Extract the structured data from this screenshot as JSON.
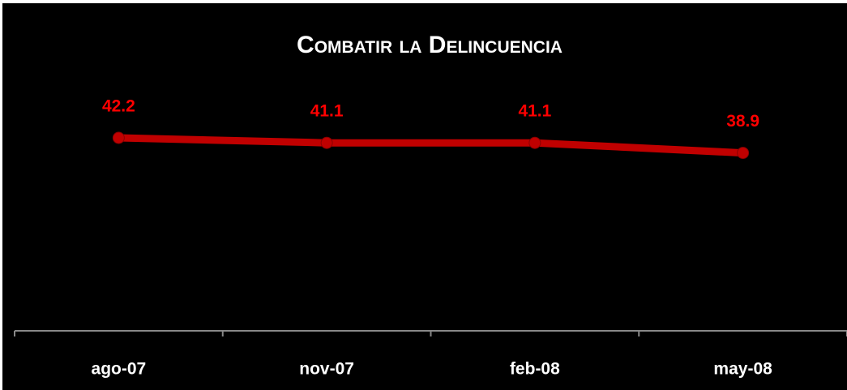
{
  "chart_data": {
    "type": "line",
    "title": "Combatir la Delincuencia",
    "categories": [
      "ago-07",
      "nov-07",
      "feb-08",
      "may-08"
    ],
    "values": [
      42.2,
      41.1,
      41.1,
      38.9
    ],
    "color": "#c00000",
    "label_color": "#ff0000",
    "ylim": [
      0,
      50
    ]
  }
}
